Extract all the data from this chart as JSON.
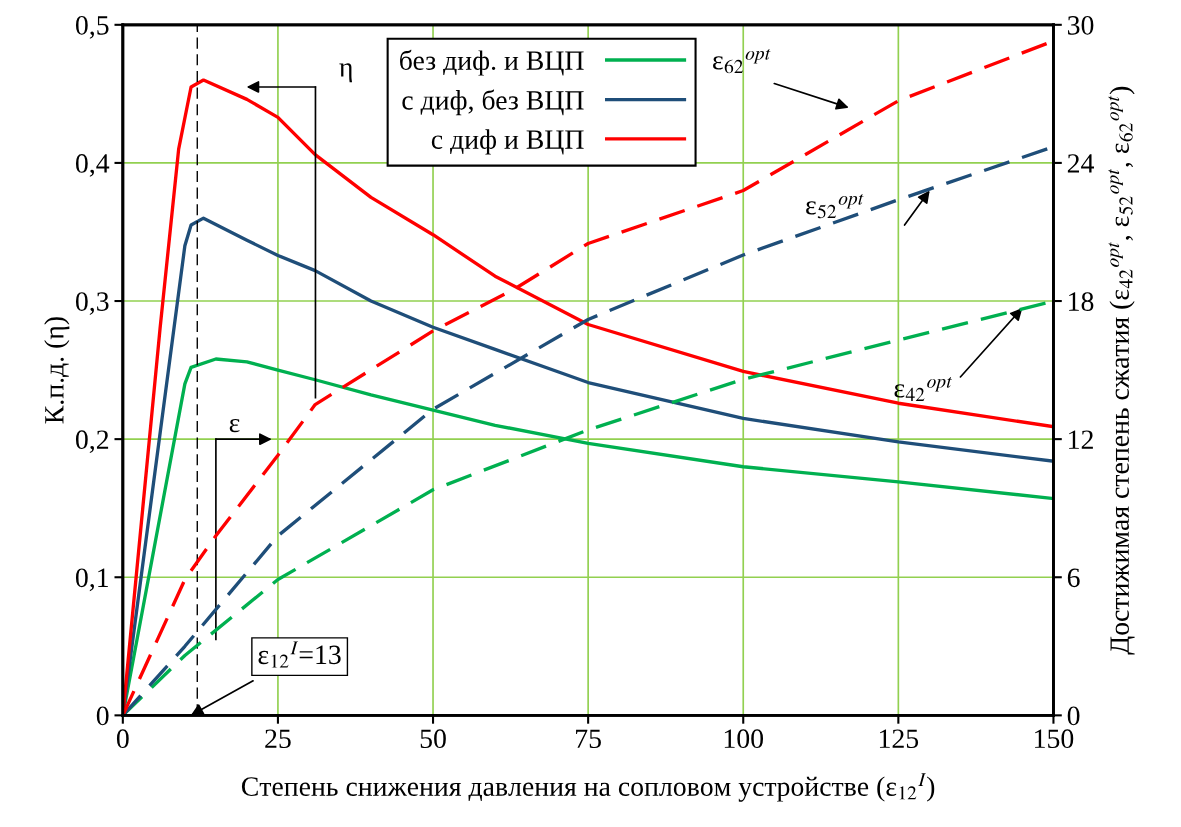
{
  "chart_data": {
    "type": "line",
    "xlabel": "Степень снижения давления на сопловом устройстве (ε$_{12}$$^{I}$)",
    "ylabel": "К.п.д. (η)",
    "y2label": "Достижимая степень сжатия (ε$_{42}$$^{opt}$, ε$_{52}$$^{opt}$, ε$_{62}$$^{opt}$)",
    "xlim": [
      0,
      150
    ],
    "xticks": [
      0,
      25,
      50,
      75,
      100,
      125,
      150
    ],
    "ylim": [
      0,
      0.5
    ],
    "yticks": [
      {
        "value": 0,
        "label": "0"
      },
      {
        "value": 0.1,
        "label": "0,1"
      },
      {
        "value": 0.2,
        "label": "0,2"
      },
      {
        "value": 0.3,
        "label": "0,3"
      },
      {
        "value": 0.4,
        "label": "0,4"
      },
      {
        "value": 0.5,
        "label": "0,5"
      }
    ],
    "y2lim": [
      0,
      30
    ],
    "y2ticks": [
      0,
      6,
      12,
      18,
      24,
      30
    ],
    "grid": true,
    "legend": "top",
    "marker": "none",
    "series": [
      {
        "name": "без диф. и ВЦП",
        "color": "#00b050",
        "line_style": "solid",
        "x": [
          0,
          5,
          10,
          11,
          15,
          20,
          25,
          31,
          40,
          50,
          60,
          75,
          100,
          125,
          150
        ],
        "values": [
          0,
          0.12,
          0.24,
          0.252,
          0.258,
          0.256,
          0.25,
          0.243,
          0.232,
          0.221,
          0.21,
          0.197,
          0.18,
          0.169,
          0.157
        ]
      },
      {
        "name": "с диф, без ВЦП",
        "color": "#1f4e79",
        "line_style": "solid",
        "x": [
          0,
          5,
          10,
          11,
          13,
          20,
          25,
          31,
          40,
          50,
          60,
          75,
          100,
          125,
          150
        ],
        "values": [
          0,
          0.17,
          0.34,
          0.355,
          0.36,
          0.344,
          0.333,
          0.322,
          0.3,
          0.281,
          0.265,
          0.241,
          0.215,
          0.198,
          0.184
        ]
      },
      {
        "name": "с диф и ВЦП",
        "color": "#ff0000",
        "line_style": "solid",
        "x": [
          0,
          3,
          6,
          9,
          11,
          13,
          20,
          25,
          31,
          40,
          50,
          60,
          75,
          100,
          125,
          150
        ],
        "values": [
          0,
          0.14,
          0.28,
          0.41,
          0.455,
          0.46,
          0.446,
          0.433,
          0.406,
          0.375,
          0.348,
          0.318,
          0.283,
          0.249,
          0.226,
          0.209
        ]
      },
      {
        "color": "#00b050",
        "line_style": "dashed",
        "axis": "y2",
        "x": [
          0,
          10,
          25,
          50,
          75,
          100,
          125,
          150
        ],
        "values": [
          0,
          2.6,
          5.9,
          9.8,
          12.4,
          14.6,
          16.3,
          18.0
        ]
      },
      {
        "color": "#1f4e79",
        "line_style": "dashed",
        "axis": "y2",
        "x": [
          0,
          10,
          25,
          50,
          75,
          100,
          125,
          150
        ],
        "values": [
          0,
          3.0,
          7.8,
          13.3,
          17.2,
          20.0,
          22.4,
          24.7
        ]
      },
      {
        "color": "#ff0000",
        "line_style": "dashed",
        "axis": "y2",
        "x": [
          0,
          10,
          15,
          25,
          31,
          50,
          63,
          75,
          100,
          125,
          150
        ],
        "values": [
          0,
          5.9,
          7.8,
          11.3,
          13.5,
          16.7,
          18.5,
          20.5,
          22.8,
          26.7,
          29.3
        ]
      }
    ],
    "ref_lines": [
      {
        "axis": "x",
        "value": 12,
        "color": "#000000",
        "line_style": "dashed"
      }
    ],
    "annotations": [
      "η",
      "ε",
      "ε$_{12}$$^{I}$=13",
      "ε$_{62}$$^{opt}$",
      "ε$_{52}$$^{opt}$",
      {
        "text": "ε$_{42}$$^{opt}$",
        "x": 145,
        "y": 0.295
      }
    ]
  }
}
